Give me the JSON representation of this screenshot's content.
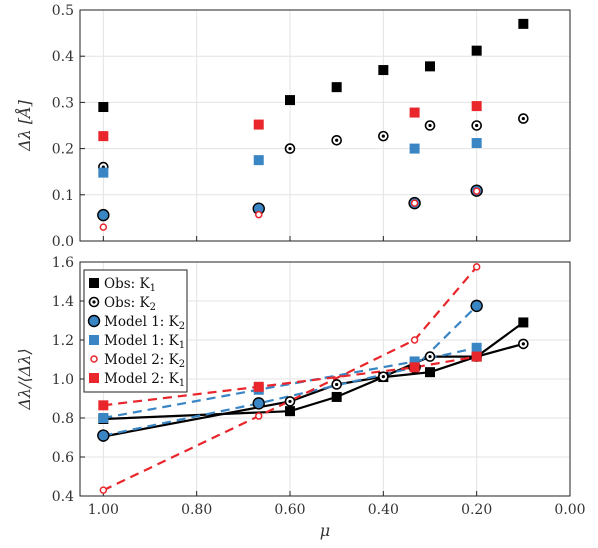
{
  "chart_data": [
    {
      "type": "scatter",
      "panel": "top",
      "ylabel": "Δλ [Å]",
      "xlim": [
        1.05,
        0.0
      ],
      "ylim": [
        0.0,
        0.5
      ],
      "yticks": [
        "0.0",
        "0.1",
        "0.2",
        "0.3",
        "0.4",
        "0.5"
      ],
      "grid": true,
      "colors": {
        "obs": "#000000",
        "model1": "#3a85c4",
        "model2": "#e8262b"
      },
      "series": [
        {
          "name": "Obs: K1",
          "marker": "square",
          "color": "#000000",
          "x": [
            1.0,
            0.6,
            0.5,
            0.4,
            0.3,
            0.2,
            0.1
          ],
          "y": [
            0.29,
            0.305,
            0.333,
            0.37,
            0.378,
            0.412,
            0.47
          ]
        },
        {
          "name": "Obs: K2",
          "marker": "circle-dot",
          "color": "#000000",
          "x": [
            1.0,
            0.6,
            0.5,
            0.4,
            0.3,
            0.2,
            0.1
          ],
          "y": [
            0.16,
            0.2,
            0.218,
            0.227,
            0.25,
            0.25,
            0.265
          ]
        },
        {
          "name": "Model 1: K2",
          "marker": "circle",
          "color": "#3a85c4",
          "x": [
            1.0,
            0.667,
            0.333,
            0.2
          ],
          "y": [
            0.056,
            0.07,
            0.082,
            0.109
          ]
        },
        {
          "name": "Model 1: K1",
          "marker": "square",
          "color": "#3a85c4",
          "x": [
            1.0,
            0.667,
            0.333,
            0.2
          ],
          "y": [
            0.148,
            0.175,
            0.2,
            0.212
          ]
        },
        {
          "name": "Model 2: K2",
          "marker": "small-circle",
          "color": "#e8262b",
          "x": [
            1.0,
            0.667,
            0.333,
            0.2
          ],
          "y": [
            0.03,
            0.057,
            0.082,
            0.108
          ]
        },
        {
          "name": "Model 2: K1",
          "marker": "square",
          "color": "#e8262b",
          "x": [
            1.0,
            0.667,
            0.333,
            0.2
          ],
          "y": [
            0.227,
            0.252,
            0.278,
            0.292
          ]
        }
      ]
    },
    {
      "type": "line",
      "panel": "bottom",
      "xlabel": "μ",
      "ylabel": "Δλ/⟨Δλ⟩",
      "xlim": [
        1.05,
        0.0
      ],
      "ylim": [
        0.4,
        1.6
      ],
      "xticks": [
        "1.00",
        "0.80",
        "0.60",
        "0.40",
        "0.20",
        "0.00"
      ],
      "yticks": [
        "0.4",
        "0.6",
        "0.8",
        "1.0",
        "1.2",
        "1.4",
        "1.6"
      ],
      "grid": true,
      "legend": "top-left",
      "series": [
        {
          "name": "Obs: K1",
          "legend_main": "Obs: K",
          "legend_sub": "1",
          "marker": "square",
          "line": "solid",
          "color": "#000000",
          "x": [
            1.0,
            0.6,
            0.5,
            0.4,
            0.3,
            0.2,
            0.1
          ],
          "y": [
            0.795,
            0.835,
            0.908,
            1.01,
            1.035,
            1.115,
            1.29
          ]
        },
        {
          "name": "Obs: K2",
          "legend_main": "Obs: K",
          "legend_sub": "2",
          "marker": "circle-dot",
          "line": "solid",
          "color": "#000000",
          "x": [
            1.0,
            0.6,
            0.5,
            0.4,
            0.3,
            0.2,
            0.1
          ],
          "y": [
            0.705,
            0.885,
            0.972,
            1.012,
            1.115,
            1.115,
            1.18
          ]
        },
        {
          "name": "Model 1: K2",
          "legend_main": "Model 1: K",
          "legend_sub": "2",
          "marker": "circle",
          "line": "dashed",
          "color": "#3a85c4",
          "x": [
            1.0,
            0.667,
            0.333,
            0.2
          ],
          "y": [
            0.71,
            0.875,
            1.06,
            1.375
          ]
        },
        {
          "name": "Model 1: K1",
          "legend_main": "Model 1: K",
          "legend_sub": "1",
          "marker": "square",
          "line": "dashed",
          "color": "#3a85c4",
          "x": [
            1.0,
            0.667,
            0.333,
            0.2
          ],
          "y": [
            0.8,
            0.945,
            1.09,
            1.16
          ]
        },
        {
          "name": "Model 2: K2",
          "legend_main": "Model 2: K",
          "legend_sub": "2",
          "marker": "small-circle",
          "line": "dashed",
          "color": "#e8262b",
          "x": [
            1.0,
            0.667,
            0.333,
            0.2
          ],
          "y": [
            0.43,
            0.81,
            1.2,
            1.575
          ]
        },
        {
          "name": "Model 2: K1",
          "legend_main": "Model 2: K",
          "legend_sub": "1",
          "marker": "square",
          "line": "dashed",
          "color": "#e8262b",
          "x": [
            1.0,
            0.667,
            0.333,
            0.2
          ],
          "y": [
            0.865,
            0.96,
            1.06,
            1.115
          ]
        }
      ]
    }
  ]
}
